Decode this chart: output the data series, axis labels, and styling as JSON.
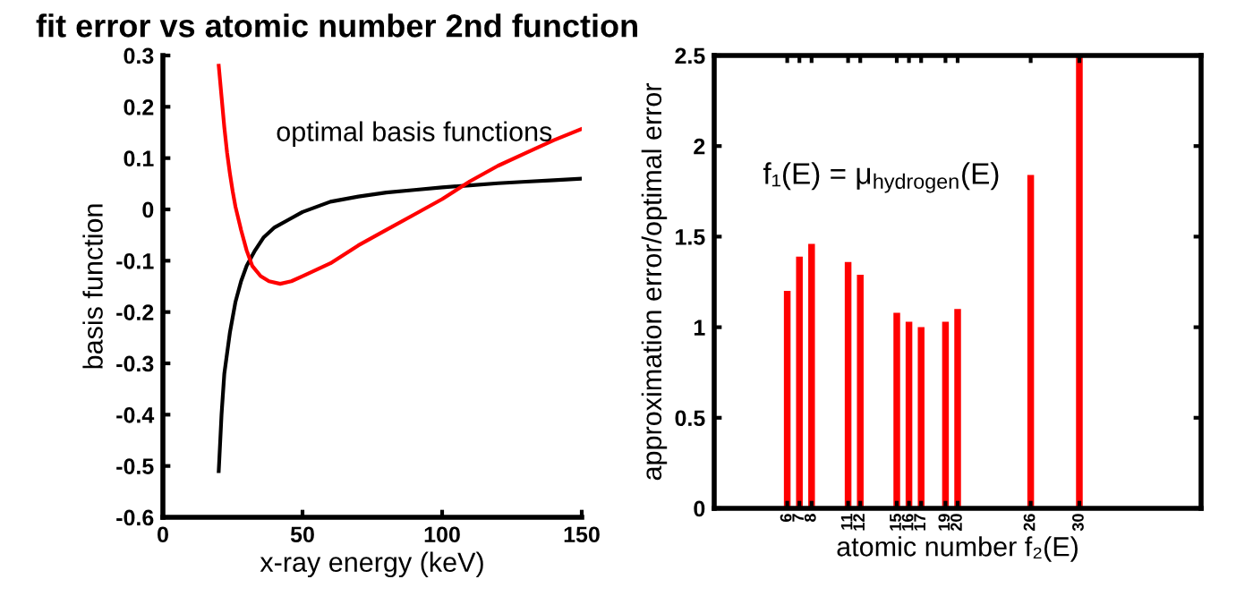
{
  "chart_data": [
    {
      "type": "line",
      "title": "fit error vs atomic number 2nd function",
      "xlabel": "x-ray energy (keV)",
      "ylabel": "basis function",
      "annotations": [
        "optimal basis functions"
      ],
      "xlim": [
        0,
        150
      ],
      "xticks": [
        0,
        50,
        100,
        150
      ],
      "ylim": [
        -0.6,
        0.3
      ],
      "yticks": [
        -0.6,
        -0.5,
        -0.4,
        -0.3,
        -0.2,
        -0.1,
        0,
        0.1,
        0.2,
        0.3
      ],
      "grid": false,
      "legend": false,
      "series": [
        {
          "color": "#000000",
          "x": [
            20,
            21,
            22,
            24,
            26,
            28,
            30,
            33,
            36,
            40,
            45,
            50,
            55,
            60,
            70,
            80,
            90,
            100,
            110,
            120,
            130,
            140,
            150
          ],
          "values": [
            -0.51,
            -0.4,
            -0.32,
            -0.24,
            -0.18,
            -0.14,
            -0.11,
            -0.08,
            -0.055,
            -0.035,
            -0.02,
            -0.005,
            0.005,
            0.015,
            0.025,
            0.033,
            0.038,
            0.043,
            0.047,
            0.051,
            0.054,
            0.057,
            0.06
          ]
        },
        {
          "color": "#ff0000",
          "x": [
            20,
            21,
            22,
            23,
            24,
            25,
            26,
            28,
            30,
            32,
            35,
            38,
            42,
            46,
            50,
            60,
            70,
            80,
            90,
            100,
            110,
            120,
            130,
            140,
            150
          ],
          "values": [
            0.28,
            0.22,
            0.16,
            0.11,
            0.07,
            0.035,
            0.005,
            -0.04,
            -0.08,
            -0.11,
            -0.13,
            -0.14,
            -0.145,
            -0.14,
            -0.13,
            -0.105,
            -0.07,
            -0.04,
            -0.01,
            0.02,
            0.055,
            0.085,
            0.11,
            0.135,
            0.157
          ]
        }
      ]
    },
    {
      "type": "bar",
      "xlabel": "atomic number f₂(E)",
      "ylabel": "approximation error/optimal error",
      "annotations": [
        "f₁(E) = μ$_{hydrogen}$(E)"
      ],
      "x": [
        6,
        7,
        8,
        11,
        12,
        15,
        16,
        17,
        19,
        20,
        26,
        30
      ],
      "values": [
        1.2,
        1.39,
        1.46,
        1.36,
        1.29,
        1.08,
        1.03,
        1.0,
        1.03,
        1.1,
        1.84,
        2.5
      ],
      "color": "#ff0000",
      "xlim": [
        0,
        40
      ],
      "xticks": [
        6,
        7,
        8,
        11,
        12,
        15,
        16,
        17,
        19,
        20,
        26,
        30
      ],
      "ylim": [
        0,
        2.5
      ],
      "yticks": [
        0,
        0.5,
        1,
        1.5,
        2,
        2.5
      ],
      "grid": false,
      "legend": false
    }
  ]
}
